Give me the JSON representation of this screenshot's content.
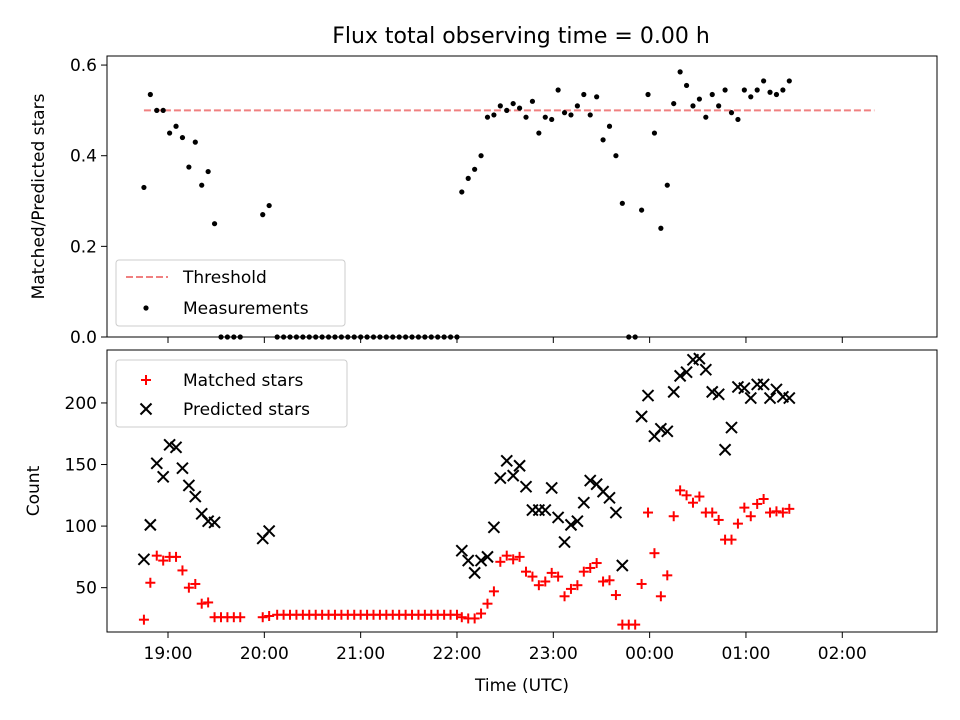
{
  "title": "Flux total observing time = 0.00 h",
  "chart_data": [
    {
      "type": "scatter",
      "ylabel": "Matched/Predicted stars",
      "xlabel": "",
      "ylim": [
        0,
        0.62
      ],
      "yticks": [
        "0.0",
        "0.2",
        "0.4",
        "0.6"
      ],
      "ytick_values": [
        0,
        0.2,
        0.4,
        0.6
      ],
      "grid": false,
      "legend_loc": "lower-left",
      "threshold": {
        "name": "Threshold",
        "value": 0.5,
        "color": "#f08080",
        "x_range": [
          "18:45",
          "02:20"
        ]
      },
      "series": [
        {
          "name": "Measurements",
          "color": "#000000",
          "points": [
            [
              "18:45",
              0.33
            ],
            [
              "18:49",
              0.535
            ],
            [
              "18:53",
              0.5
            ],
            [
              "18:57",
              0.5
            ],
            [
              "19:01",
              0.45
            ],
            [
              "19:05",
              0.465
            ],
            [
              "19:09",
              0.44
            ],
            [
              "19:13",
              0.375
            ],
            [
              "19:17",
              0.43
            ],
            [
              "19:21",
              0.335
            ],
            [
              "19:25",
              0.365
            ],
            [
              "19:29",
              0.25
            ],
            [
              "19:33",
              0.0
            ],
            [
              "19:37",
              0.0
            ],
            [
              "19:41",
              0.0
            ],
            [
              "19:45",
              0.0
            ],
            [
              "19:59",
              0.27
            ],
            [
              "20:03",
              0.29
            ],
            [
              "20:08",
              0.0
            ],
            [
              "20:12",
              0.0
            ],
            [
              "20:16",
              0.0
            ],
            [
              "20:20",
              0.0
            ],
            [
              "20:24",
              0.0
            ],
            [
              "20:28",
              0.0
            ],
            [
              "20:32",
              0.0
            ],
            [
              "20:36",
              0.0
            ],
            [
              "20:40",
              0.0
            ],
            [
              "20:44",
              0.0
            ],
            [
              "20:48",
              0.0
            ],
            [
              "20:52",
              0.0
            ],
            [
              "20:56",
              0.0
            ],
            [
              "21:00",
              0.0
            ],
            [
              "21:04",
              0.0
            ],
            [
              "21:08",
              0.0
            ],
            [
              "21:12",
              0.0
            ],
            [
              "21:16",
              0.0
            ],
            [
              "21:20",
              0.0
            ],
            [
              "21:24",
              0.0
            ],
            [
              "21:28",
              0.0
            ],
            [
              "21:32",
              0.0
            ],
            [
              "21:36",
              0.0
            ],
            [
              "21:40",
              0.0
            ],
            [
              "21:44",
              0.0
            ],
            [
              "21:48",
              0.0
            ],
            [
              "21:52",
              0.0
            ],
            [
              "21:56",
              0.0
            ],
            [
              "22:00",
              0.0
            ],
            [
              "22:03",
              0.32
            ],
            [
              "22:07",
              0.35
            ],
            [
              "22:11",
              0.37
            ],
            [
              "22:15",
              0.4
            ],
            [
              "22:19",
              0.485
            ],
            [
              "22:23",
              0.49
            ],
            [
              "22:27",
              0.51
            ],
            [
              "22:31",
              0.5
            ],
            [
              "22:35",
              0.515
            ],
            [
              "22:39",
              0.505
            ],
            [
              "22:43",
              0.485
            ],
            [
              "22:47",
              0.52
            ],
            [
              "22:51",
              0.45
            ],
            [
              "22:55",
              0.485
            ],
            [
              "22:59",
              0.48
            ],
            [
              "23:03",
              0.545
            ],
            [
              "23:07",
              0.495
            ],
            [
              "23:11",
              0.49
            ],
            [
              "23:15",
              0.51
            ],
            [
              "23:19",
              0.535
            ],
            [
              "23:23",
              0.49
            ],
            [
              "23:27",
              0.53
            ],
            [
              "23:31",
              0.435
            ],
            [
              "23:35",
              0.465
            ],
            [
              "23:39",
              0.4
            ],
            [
              "23:43",
              0.295
            ],
            [
              "23:47",
              0.0
            ],
            [
              "23:51",
              0.0
            ],
            [
              "23:55",
              0.28
            ],
            [
              "23:59",
              0.535
            ],
            [
              "00:03",
              0.45
            ],
            [
              "00:07",
              0.24
            ],
            [
              "00:11",
              0.335
            ],
            [
              "00:15",
              0.515
            ],
            [
              "00:19",
              0.585
            ],
            [
              "00:23",
              0.555
            ],
            [
              "00:27",
              0.51
            ],
            [
              "00:31",
              0.525
            ],
            [
              "00:35",
              0.485
            ],
            [
              "00:39",
              0.535
            ],
            [
              "00:43",
              0.51
            ],
            [
              "00:47",
              0.545
            ],
            [
              "00:51",
              0.495
            ],
            [
              "00:55",
              0.48
            ],
            [
              "00:59",
              0.545
            ],
            [
              "01:03",
              0.53
            ],
            [
              "01:07",
              0.545
            ],
            [
              "01:11",
              0.565
            ],
            [
              "01:15",
              0.54
            ],
            [
              "01:19",
              0.535
            ],
            [
              "01:23",
              0.545
            ],
            [
              "01:27",
              0.565
            ]
          ]
        }
      ]
    },
    {
      "type": "scatter",
      "ylabel": "Count",
      "xlabel": "Time (UTC)",
      "ylim": [
        14,
        243
      ],
      "yticks": [
        "50",
        "100",
        "150",
        "200"
      ],
      "ytick_values": [
        50,
        100,
        150,
        200
      ],
      "xticks": [
        "19:00",
        "20:00",
        "21:00",
        "22:00",
        "23:00",
        "00:00",
        "01:00",
        "02:00"
      ],
      "grid": false,
      "legend_loc": "upper-left",
      "series": [
        {
          "name": "Matched stars",
          "color": "#ff0000",
          "marker": "plus",
          "points": [
            [
              "18:45",
              24
            ],
            [
              "18:49",
              54
            ],
            [
              "18:53",
              76
            ],
            [
              "18:57",
              72
            ],
            [
              "19:01",
              75
            ],
            [
              "19:05",
              75
            ],
            [
              "19:09",
              64
            ],
            [
              "19:13",
              50
            ],
            [
              "19:17",
              53
            ],
            [
              "19:21",
              37
            ],
            [
              "19:25",
              38
            ],
            [
              "19:29",
              26
            ],
            [
              "19:33",
              26
            ],
            [
              "19:37",
              26
            ],
            [
              "19:41",
              26
            ],
            [
              "19:45",
              26
            ],
            [
              "19:59",
              26
            ],
            [
              "20:03",
              27
            ],
            [
              "20:08",
              28
            ],
            [
              "20:12",
              28
            ],
            [
              "20:16",
              28
            ],
            [
              "20:20",
              28
            ],
            [
              "20:24",
              28
            ],
            [
              "20:28",
              28
            ],
            [
              "20:32",
              28
            ],
            [
              "20:36",
              28
            ],
            [
              "20:40",
              28
            ],
            [
              "20:44",
              28
            ],
            [
              "20:48",
              28
            ],
            [
              "20:52",
              28
            ],
            [
              "20:56",
              28
            ],
            [
              "21:00",
              28
            ],
            [
              "21:04",
              28
            ],
            [
              "21:08",
              28
            ],
            [
              "21:12",
              28
            ],
            [
              "21:16",
              28
            ],
            [
              "21:20",
              28
            ],
            [
              "21:24",
              28
            ],
            [
              "21:28",
              28
            ],
            [
              "21:32",
              28
            ],
            [
              "21:36",
              28
            ],
            [
              "21:40",
              28
            ],
            [
              "21:44",
              28
            ],
            [
              "21:48",
              28
            ],
            [
              "21:52",
              28
            ],
            [
              "21:56",
              28
            ],
            [
              "22:00",
              28
            ],
            [
              "22:03",
              26
            ],
            [
              "22:07",
              25
            ],
            [
              "22:11",
              25
            ],
            [
              "22:15",
              29
            ],
            [
              "22:19",
              37
            ],
            [
              "22:23",
              47
            ],
            [
              "22:27",
              71
            ],
            [
              "22:31",
              76
            ],
            [
              "22:35",
              73
            ],
            [
              "22:39",
              75
            ],
            [
              "22:43",
              63
            ],
            [
              "22:47",
              59
            ],
            [
              "22:51",
              52
            ],
            [
              "22:55",
              55
            ],
            [
              "22:59",
              62
            ],
            [
              "23:03",
              59
            ],
            [
              "23:07",
              43
            ],
            [
              "23:11",
              49
            ],
            [
              "23:15",
              52
            ],
            [
              "23:19",
              63
            ],
            [
              "23:23",
              66
            ],
            [
              "23:27",
              70
            ],
            [
              "23:31",
              55
            ],
            [
              "23:35",
              56
            ],
            [
              "23:39",
              44
            ],
            [
              "23:43",
              20
            ],
            [
              "23:47",
              20
            ],
            [
              "23:51",
              20
            ],
            [
              "23:55",
              53
            ],
            [
              "23:59",
              111
            ],
            [
              "00:03",
              78
            ],
            [
              "00:07",
              43
            ],
            [
              "00:11",
              60
            ],
            [
              "00:15",
              108
            ],
            [
              "00:19",
              129
            ],
            [
              "00:23",
              125
            ],
            [
              "00:27",
              119
            ],
            [
              "00:31",
              124
            ],
            [
              "00:35",
              111
            ],
            [
              "00:39",
              111
            ],
            [
              "00:43",
              105
            ],
            [
              "00:47",
              89
            ],
            [
              "00:51",
              89
            ],
            [
              "00:55",
              102
            ],
            [
              "00:59",
              115
            ],
            [
              "01:03",
              108
            ],
            [
              "01:07",
              118
            ],
            [
              "01:11",
              122
            ],
            [
              "01:15",
              111
            ],
            [
              "01:19",
              112
            ],
            [
              "01:23",
              111
            ],
            [
              "01:27",
              114
            ]
          ]
        },
        {
          "name": "Predicted stars",
          "color": "#000000",
          "marker": "x",
          "points": [
            [
              "18:45",
              73
            ],
            [
              "18:49",
              101
            ],
            [
              "18:53",
              151
            ],
            [
              "18:57",
              140
            ],
            [
              "19:01",
              166
            ],
            [
              "19:05",
              164
            ],
            [
              "19:09",
              147
            ],
            [
              "19:13",
              133
            ],
            [
              "19:17",
              124
            ],
            [
              "19:21",
              110
            ],
            [
              "19:25",
              104
            ],
            [
              "19:29",
              103
            ],
            [
              "19:59",
              90
            ],
            [
              "20:03",
              96
            ],
            [
              "22:03",
              80
            ],
            [
              "22:07",
              72
            ],
            [
              "22:11",
              62
            ],
            [
              "22:15",
              72
            ],
            [
              "22:19",
              75
            ],
            [
              "22:23",
              99
            ],
            [
              "22:27",
              139
            ],
            [
              "22:31",
              153
            ],
            [
              "22:35",
              141
            ],
            [
              "22:39",
              149
            ],
            [
              "22:43",
              132
            ],
            [
              "22:47",
              113
            ],
            [
              "22:51",
              113
            ],
            [
              "22:55",
              113
            ],
            [
              "22:59",
              131
            ],
            [
              "23:03",
              107
            ],
            [
              "23:07",
              87
            ],
            [
              "23:11",
              101
            ],
            [
              "23:15",
              104
            ],
            [
              "23:19",
              119
            ],
            [
              "23:23",
              137
            ],
            [
              "23:27",
              134
            ],
            [
              "23:31",
              128
            ],
            [
              "23:35",
              123
            ],
            [
              "23:39",
              111
            ],
            [
              "23:43",
              68
            ],
            [
              "23:55",
              189
            ],
            [
              "23:59",
              206
            ],
            [
              "00:03",
              173
            ],
            [
              "00:07",
              179
            ],
            [
              "00:11",
              177
            ],
            [
              "00:15",
              209
            ],
            [
              "00:19",
              222
            ],
            [
              "00:23",
              225
            ],
            [
              "00:27",
              235
            ],
            [
              "00:31",
              236
            ],
            [
              "00:35",
              227
            ],
            [
              "00:39",
              209
            ],
            [
              "00:43",
              207
            ],
            [
              "00:47",
              162
            ],
            [
              "00:51",
              180
            ],
            [
              "00:55",
              213
            ],
            [
              "00:59",
              212
            ],
            [
              "01:03",
              204
            ],
            [
              "01:07",
              215
            ],
            [
              "01:11",
              215
            ],
            [
              "01:15",
              204
            ],
            [
              "01:19",
              211
            ],
            [
              "01:23",
              205
            ],
            [
              "01:27",
              204
            ]
          ]
        }
      ]
    }
  ]
}
